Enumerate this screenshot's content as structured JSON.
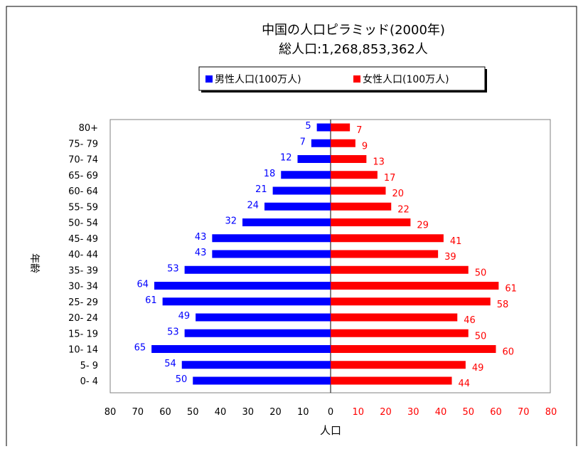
{
  "chart_data": {
    "type": "bar",
    "title": "中国の人口ピラミッド(2000年)",
    "subtitle": "総人口:1,268,853,362人",
    "xlabel": "人口",
    "ylabel": "年齢",
    "categories": [
      "0- 4",
      "5- 9",
      "10- 14",
      "15- 19",
      "20- 24",
      "25- 29",
      "30- 34",
      "35- 39",
      "40- 44",
      "45- 49",
      "50- 54",
      "55- 59",
      "60- 64",
      "65- 69",
      "70- 74",
      "75- 79",
      "80+"
    ],
    "series": [
      {
        "name": "男性人口(100万人)",
        "color": "#0000ff",
        "values": [
          50,
          54,
          65,
          53,
          49,
          61,
          64,
          53,
          43,
          43,
          32,
          24,
          21,
          18,
          12,
          7,
          5
        ]
      },
      {
        "name": "女性人口(100万人)",
        "color": "#ff0000",
        "values": [
          44,
          49,
          60,
          50,
          46,
          58,
          61,
          50,
          39,
          41,
          29,
          22,
          20,
          17,
          13,
          9,
          7
        ]
      }
    ],
    "xticks_left": [
      "80",
      "70",
      "60",
      "50",
      "40",
      "30",
      "20",
      "10",
      "0"
    ],
    "xticks_right": [
      "10",
      "20",
      "30",
      "40",
      "50",
      "60",
      "70",
      "80"
    ],
    "xlim": [
      0,
      80
    ],
    "legend_position": "top",
    "grid": false
  }
}
